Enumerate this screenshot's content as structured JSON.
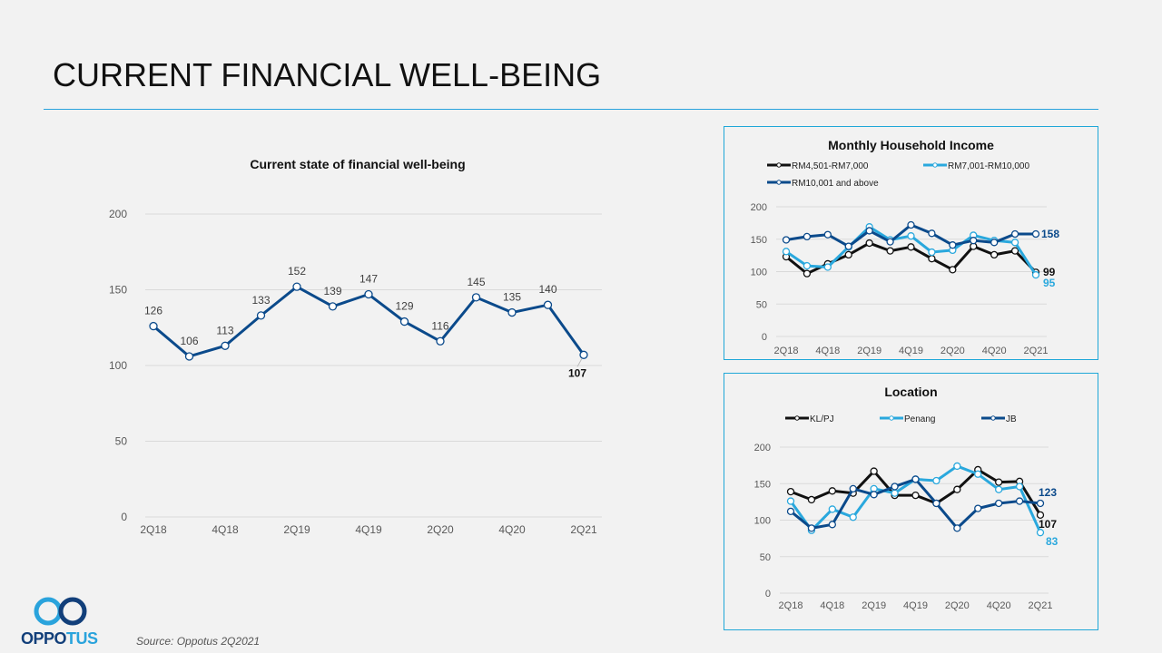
{
  "page": {
    "title": "CURRENT FINANCIAL WELL-BEING",
    "source": "Source: Oppotus 2Q2021",
    "logo": {
      "word_part1": "OPPO",
      "word_part2": "TUS"
    }
  },
  "colors": {
    "accent": "#29a3dc",
    "navy": "#0b4a8b",
    "cyan": "#2aa8dd",
    "black": "#111111",
    "grid": "#d9d9d9",
    "tick_text": "#595959"
  },
  "chart_data": [
    {
      "id": "main",
      "type": "line",
      "title": "Current state of financial well-being",
      "xlabel": "",
      "ylabel": "",
      "categories": [
        "2Q18",
        "3Q18",
        "4Q18",
        "1Q19",
        "2Q19",
        "3Q19",
        "4Q19",
        "1Q20",
        "2Q20",
        "3Q20",
        "4Q20",
        "1Q21",
        "2Q21"
      ],
      "x_tick_labels": [
        "2Q18",
        "",
        "4Q18",
        "",
        "2Q19",
        "",
        "4Q19",
        "",
        "2Q20",
        "",
        "4Q20",
        "",
        "2Q21"
      ],
      "yticks": [
        0,
        50,
        100,
        150,
        200
      ],
      "ylim": [
        0,
        200
      ],
      "grid": true,
      "legend": "none",
      "series": [
        {
          "name": "Current state of financial well-being",
          "color": "#0b4a8b",
          "values": [
            126,
            106,
            113,
            133,
            152,
            139,
            147,
            129,
            116,
            145,
            135,
            140,
            107
          ],
          "labels": true,
          "last_label_bold": true
        }
      ]
    },
    {
      "id": "income",
      "type": "line",
      "title": "Monthly Household Income",
      "xlabel": "",
      "ylabel": "",
      "categories": [
        "2Q18",
        "3Q18",
        "4Q18",
        "1Q19",
        "2Q19",
        "3Q19",
        "4Q19",
        "1Q20",
        "2Q20",
        "3Q20",
        "4Q20",
        "1Q21",
        "2Q21"
      ],
      "x_tick_labels": [
        "2Q18",
        "",
        "4Q18",
        "",
        "2Q19",
        "",
        "4Q19",
        "",
        "2Q20",
        "",
        "4Q20",
        "",
        "2Q21"
      ],
      "yticks": [
        0,
        50,
        100,
        150,
        200
      ],
      "ylim": [
        0,
        200
      ],
      "grid": true,
      "legend": "top",
      "series": [
        {
          "name": "RM4,501-RM7,000",
          "color": "#111111",
          "values": [
            123,
            97,
            112,
            126,
            144,
            132,
            138,
            120,
            103,
            139,
            126,
            132,
            99
          ],
          "end_label": "99"
        },
        {
          "name": "RM7,001-RM10,000",
          "color": "#2aa8dd",
          "values": [
            131,
            109,
            107,
            138,
            169,
            149,
            155,
            130,
            133,
            156,
            148,
            145,
            95
          ],
          "end_label": "95"
        },
        {
          "name": "RM10,001 and above",
          "color": "#0b4a8b",
          "values": [
            149,
            154,
            157,
            139,
            163,
            146,
            172,
            159,
            141,
            148,
            145,
            158,
            158
          ],
          "end_label": "158"
        }
      ]
    },
    {
      "id": "location",
      "type": "line",
      "title": "Location",
      "xlabel": "",
      "ylabel": "",
      "categories": [
        "2Q18",
        "3Q18",
        "4Q18",
        "1Q19",
        "2Q19",
        "3Q19",
        "4Q19",
        "1Q20",
        "2Q20",
        "3Q20",
        "4Q20",
        "1Q21",
        "2Q21"
      ],
      "x_tick_labels": [
        "2Q18",
        "",
        "4Q18",
        "",
        "2Q19",
        "",
        "4Q19",
        "",
        "2Q20",
        "",
        "4Q20",
        "",
        "2Q21"
      ],
      "yticks": [
        0,
        50,
        100,
        150,
        200
      ],
      "ylim": [
        0,
        200
      ],
      "grid": true,
      "legend": "top",
      "series": [
        {
          "name": "KL/PJ",
          "color": "#111111",
          "values": [
            139,
            128,
            140,
            137,
            167,
            134,
            134,
            123,
            142,
            169,
            152,
            153,
            107
          ],
          "end_label": "107"
        },
        {
          "name": "Penang",
          "color": "#2aa8dd",
          "values": [
            126,
            86,
            115,
            104,
            143,
            137,
            156,
            154,
            174,
            163,
            142,
            146,
            83
          ],
          "end_label": "83"
        },
        {
          "name": "JB",
          "color": "#0b4a8b",
          "values": [
            112,
            89,
            94,
            143,
            135,
            146,
            156,
            123,
            89,
            116,
            123,
            126,
            123
          ],
          "end_label": "123"
        }
      ]
    }
  ]
}
